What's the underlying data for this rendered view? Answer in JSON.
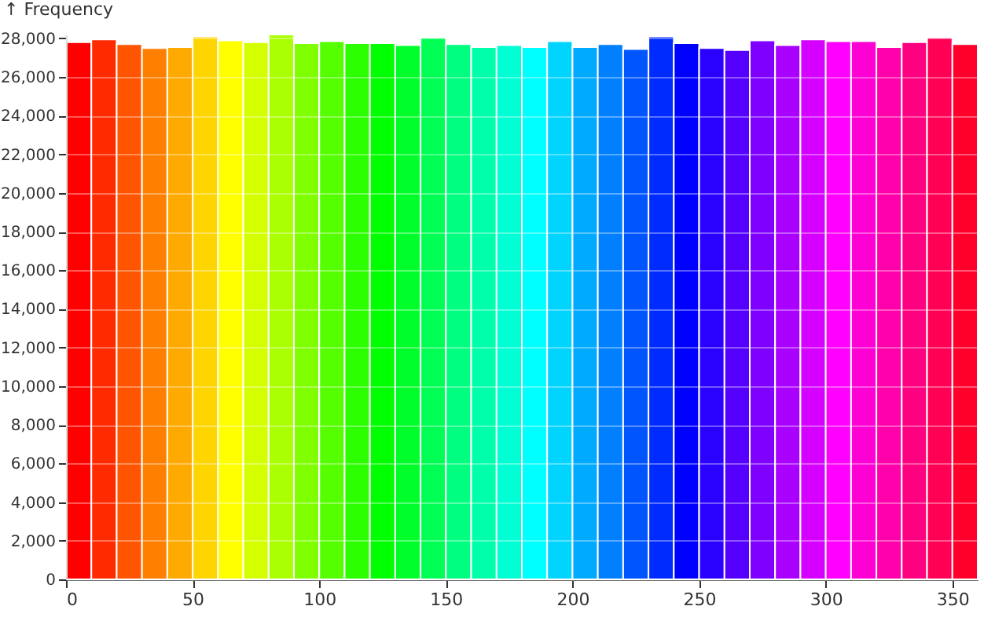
{
  "chart_data": {
    "type": "histogram",
    "ylabel": "↑ Frequency",
    "bins": [
      0,
      10,
      20,
      30,
      40,
      50,
      60,
      70,
      80,
      90,
      100,
      110,
      120,
      130,
      140,
      150,
      160,
      170,
      180,
      190,
      200,
      210,
      220,
      230,
      240,
      250,
      260,
      270,
      280,
      290,
      300,
      310,
      320,
      330,
      340,
      350,
      360
    ],
    "values": [
      27800,
      27950,
      27700,
      27500,
      27550,
      28100,
      27900,
      27800,
      28200,
      27750,
      27850,
      27750,
      27750,
      27650,
      28050,
      27700,
      27550,
      27650,
      27550,
      27850,
      27550,
      27700,
      27450,
      28100,
      27750,
      27500,
      27400,
      27900,
      27650,
      27950,
      27850,
      27850,
      27550,
      27800,
      28050,
      27700
    ],
    "colors": [
      "#ff0000",
      "#ff2a00",
      "#ff5500",
      "#ff8000",
      "#ffaa00",
      "#ffd500",
      "#ffff00",
      "#d4ff00",
      "#aaff00",
      "#80ff00",
      "#55ff00",
      "#2bff00",
      "#00ff00",
      "#00ff2a",
      "#00ff55",
      "#00ff80",
      "#00ffaa",
      "#00ffd5",
      "#00ffff",
      "#00d4ff",
      "#00aaff",
      "#0080ff",
      "#0055ff",
      "#002bff",
      "#0000ff",
      "#2a00ff",
      "#5500ff",
      "#8000ff",
      "#aa00ff",
      "#d500ff",
      "#ff00ff",
      "#ff00d4",
      "#ff00aa",
      "#ff0080",
      "#ff0055",
      "#ff002b"
    ],
    "xlim": [
      0,
      360
    ],
    "xticks": [
      0,
      50,
      100,
      150,
      200,
      250,
      300,
      350
    ],
    "ylim": [
      0,
      28200
    ],
    "yticks": [
      0,
      {
        "value": 2000,
        "label": "2,000"
      },
      {
        "value": 4000,
        "label": "4,000"
      },
      {
        "value": 6000,
        "label": "6,000"
      },
      {
        "value": 8000,
        "label": "8,000"
      },
      {
        "value": 10000,
        "label": "10,000"
      },
      {
        "value": 12000,
        "label": "12,000"
      },
      {
        "value": 14000,
        "label": "14,000"
      },
      {
        "value": 16000,
        "label": "16,000"
      },
      {
        "value": 18000,
        "label": "18,000"
      },
      {
        "value": 20000,
        "label": "20,000"
      },
      {
        "value": 22000,
        "label": "22,000"
      },
      {
        "value": 24000,
        "label": "24,000"
      },
      {
        "value": 26000,
        "label": "26,000"
      },
      {
        "value": 28000,
        "label": "28,000"
      }
    ],
    "grid": "y"
  }
}
